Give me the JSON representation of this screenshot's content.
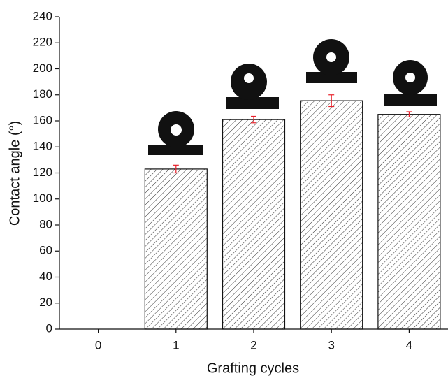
{
  "chart_data": {
    "type": "bar",
    "x_label": "Grafting cycles",
    "y_label": "Contact angle (°)",
    "categories": [
      "0",
      "1",
      "2",
      "3",
      "4"
    ],
    "values": [
      0,
      123,
      161,
      175.5,
      165
    ],
    "errors": [
      null,
      3,
      2.5,
      4.5,
      2
    ],
    "color": "#ffffff",
    "hatch_color": "#333333",
    "error_color": "#e8202a",
    "ylim": [
      0,
      240
    ],
    "yticks": [
      0,
      20,
      40,
      60,
      80,
      100,
      120,
      140,
      160,
      180,
      200,
      220,
      240
    ],
    "grid": false
  }
}
